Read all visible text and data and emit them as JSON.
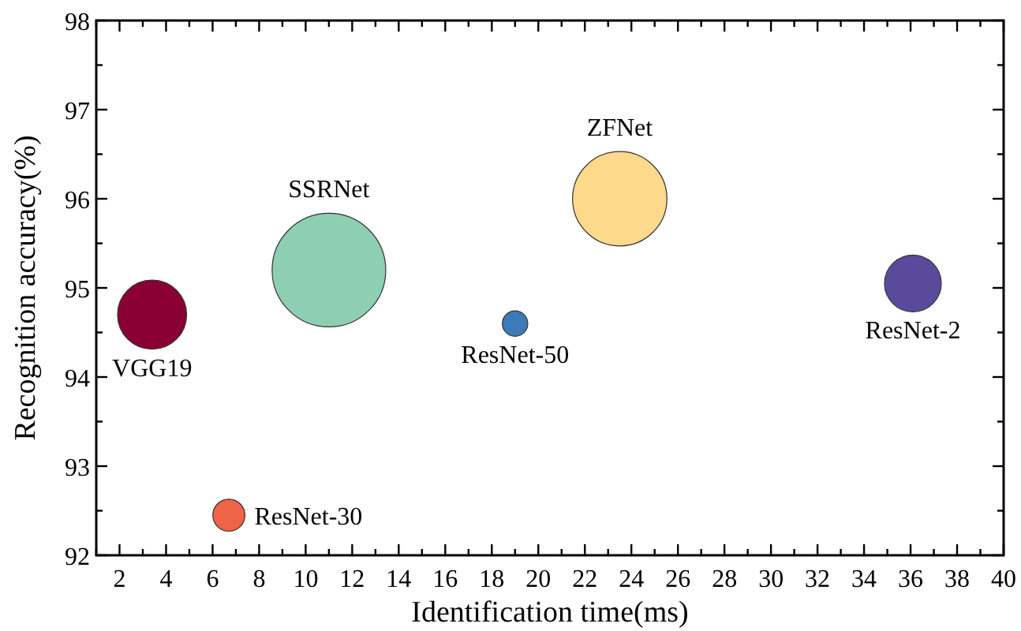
{
  "chart_data": {
    "type": "bubble",
    "xlabel": "Identification time(ms)",
    "ylabel": "Recognition accuracy(%)",
    "xlim": [
      1,
      40
    ],
    "xticks": [
      2,
      4,
      6,
      8,
      10,
      12,
      14,
      16,
      18,
      20,
      22,
      24,
      26,
      28,
      30,
      32,
      34,
      36,
      38,
      40
    ],
    "ylim": [
      92,
      98
    ],
    "yticks": [
      92,
      93,
      94,
      95,
      96,
      97,
      98
    ],
    "grid": false,
    "series": [
      {
        "name": "VGG19",
        "color": "#8b0034",
        "x": [
          3.4
        ],
        "values": [
          94.7
        ],
        "sizes": [
          0.37
        ]
      },
      {
        "name": "SSRNet",
        "color": "#8ecfb4",
        "x": [
          11
        ],
        "values": [
          95.2
        ],
        "sizes": [
          1
        ]
      },
      {
        "name": "ResNet-50",
        "color": "#3d7ab8",
        "x": [
          19
        ],
        "values": [
          94.6
        ],
        "sizes": [
          0.05
        ]
      },
      {
        "name": "ZFNet",
        "color": "#fdd98b",
        "x": [
          23.5
        ],
        "values": [
          96.0
        ],
        "sizes": [
          0.69
        ]
      },
      {
        "name": "ResNet-2",
        "color": "#5a4a9c",
        "x": [
          36.1
        ],
        "values": [
          95.05
        ],
        "sizes": [
          0.25
        ]
      },
      {
        "name": "ResNet-30",
        "color": "#ef6346",
        "x": [
          6.7
        ],
        "values": [
          92.45
        ],
        "sizes": [
          0.08
        ]
      }
    ]
  }
}
